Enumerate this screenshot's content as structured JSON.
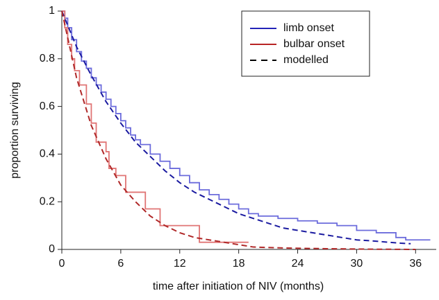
{
  "chart_data": {
    "type": "survival",
    "x_label": "time after initiation of NIV (months)",
    "y_label": "proportion surviving",
    "xlim": [
      0,
      38.1
    ],
    "ylim": [
      0,
      1
    ],
    "xticks": [
      0,
      6,
      12,
      18,
      24,
      30,
      36
    ],
    "yticks": [
      0,
      0.2,
      0.4,
      0.6,
      0.8,
      1
    ],
    "legend": "upper right",
    "series": [
      {
        "name": "limb onset",
        "color": "#6b6bdc",
        "legend_color": "#2323b8",
        "step": true,
        "x": [
          0,
          0.3,
          0.6,
          1,
          1.5,
          2,
          2.5,
          3,
          3.5,
          4,
          4.5,
          5,
          5.5,
          6,
          6.5,
          7,
          7.5,
          8,
          9,
          10,
          11,
          12,
          13,
          14,
          15,
          16,
          17,
          18,
          19,
          20,
          22,
          24,
          26,
          28,
          30,
          32,
          34,
          35,
          37.5
        ],
        "values": [
          1,
          0.97,
          0.93,
          0.88,
          0.83,
          0.79,
          0.76,
          0.72,
          0.69,
          0.66,
          0.63,
          0.6,
          0.57,
          0.54,
          0.51,
          0.48,
          0.46,
          0.44,
          0.4,
          0.37,
          0.34,
          0.31,
          0.28,
          0.25,
          0.23,
          0.21,
          0.19,
          0.17,
          0.15,
          0.14,
          0.13,
          0.12,
          0.11,
          0.1,
          0.08,
          0.07,
          0.05,
          0.04,
          0.04
        ]
      },
      {
        "name": "bulbar onset",
        "color": "#e07474",
        "legend_color": "#b82323",
        "step": true,
        "x": [
          0,
          0.3,
          0.6,
          1,
          1.3,
          1.8,
          2.5,
          3,
          3.5,
          4.5,
          4.8,
          5.5,
          6.5,
          8.5,
          10,
          14,
          19
        ],
        "values": [
          1,
          0.93,
          0.86,
          0.8,
          0.75,
          0.69,
          0.61,
          0.53,
          0.45,
          0.41,
          0.34,
          0.31,
          0.24,
          0.17,
          0.1,
          0.03,
          0.03
        ]
      },
      {
        "name": "modelled",
        "color": "#1a1aa0",
        "legend_color": "#000000",
        "dashed": true,
        "x": [
          0,
          1.5,
          3,
          4.5,
          6,
          7.5,
          9,
          10.5,
          12,
          13.5,
          15,
          16.5,
          18,
          19.5,
          21,
          22.5,
          24,
          25.5,
          27,
          28.5,
          30,
          31.5,
          33,
          34.5,
          35.5
        ],
        "values": [
          1,
          0.85,
          0.73,
          0.62,
          0.53,
          0.45,
          0.39,
          0.33,
          0.28,
          0.24,
          0.21,
          0.18,
          0.15,
          0.13,
          0.11,
          0.09,
          0.08,
          0.07,
          0.06,
          0.05,
          0.04,
          0.036,
          0.031,
          0.026,
          0.024
        ]
      },
      {
        "color": "#b02828",
        "dashed": true,
        "x": [
          0,
          1.5,
          3,
          4.5,
          6,
          7.5,
          9,
          10.5,
          12,
          13.5,
          15,
          16.5,
          18,
          19.5,
          22.5,
          27,
          31.5,
          36
        ],
        "values": [
          1,
          0.72,
          0.52,
          0.38,
          0.27,
          0.2,
          0.14,
          0.1,
          0.07,
          0.05,
          0.04,
          0.03,
          0.02,
          0.01,
          0.006,
          0.003,
          0.001,
          0
        ]
      }
    ]
  }
}
